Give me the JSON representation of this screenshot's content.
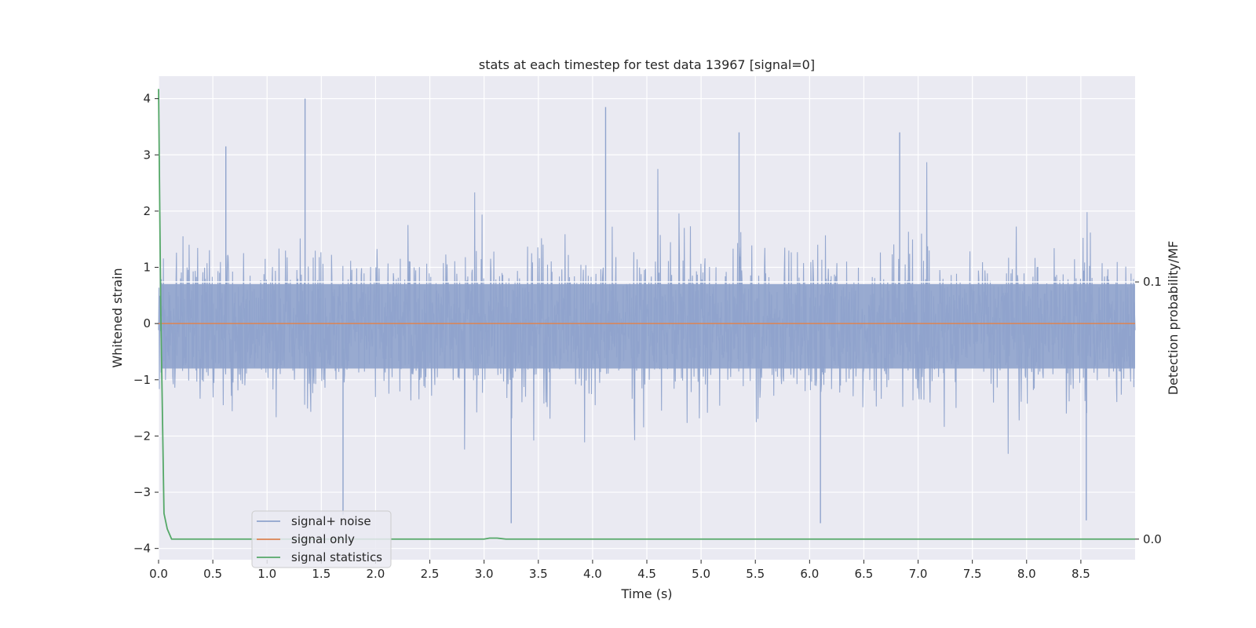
{
  "chart_data": {
    "type": "line",
    "title": "stats at each timestep for test data 13967 [signal=0]",
    "xlabel": "Time (s)",
    "ylabel": "Whitened strain",
    "y2label": "Detection probability/MF",
    "xlim": [
      0.0,
      9.0
    ],
    "ylim": [
      -4.2,
      4.4
    ],
    "y2lim": [
      -0.008,
      0.18
    ],
    "x_ticks": [
      "0.0",
      "0.5",
      "1.0",
      "1.5",
      "2.0",
      "2.5",
      "3.0",
      "3.5",
      "4.0",
      "4.5",
      "5.0",
      "5.5",
      "6.0",
      "6.5",
      "7.0",
      "7.5",
      "8.0",
      "8.5"
    ],
    "y_ticks": [
      "4",
      "3",
      "2",
      "1",
      "0",
      "−1",
      "−2",
      "−3",
      "−4"
    ],
    "y2_ticks": [
      "0.1",
      "0.0"
    ],
    "grid": true,
    "legend_placement": "lower-left",
    "colors": {
      "background": "#eaeaf2",
      "grid": "#ffffff",
      "noise": "#8fa3cc",
      "signal": "#dd8452",
      "stats": "#55a868"
    },
    "series": [
      {
        "name": "signal+ noise",
        "description_shape": "dense noise band, mostly within [-1.8, 1.9] with spikes up to about 4.0 near t=1.35 and down to about -3.6 near t=3.25",
        "sample_peaks": [
          {
            "x": 1.35,
            "y": 4.0
          },
          {
            "x": 4.12,
            "y": 3.85
          },
          {
            "x": 5.35,
            "y": 3.4
          },
          {
            "x": 6.83,
            "y": 3.4
          },
          {
            "x": 0.62,
            "y": 3.15
          },
          {
            "x": 3.25,
            "y": -3.55
          },
          {
            "x": 6.1,
            "y": -3.55
          },
          {
            "x": 8.55,
            "y": -3.5
          },
          {
            "x": 1.7,
            "y": -3.4
          }
        ]
      },
      {
        "name": "signal only",
        "x": [
          0.0,
          9.0
        ],
        "y": [
          0.0,
          0.0
        ]
      },
      {
        "name": "signal statistics",
        "axis": "right",
        "x": [
          0.0,
          0.02,
          0.05,
          0.08,
          0.12,
          3.0,
          3.05,
          3.12,
          3.2,
          9.0
        ],
        "y": [
          0.175,
          0.09,
          0.01,
          0.004,
          0.0,
          0.0,
          0.0004,
          0.0004,
          0.0,
          0.0
        ]
      }
    ],
    "threshold_line_y2": 0.1
  }
}
